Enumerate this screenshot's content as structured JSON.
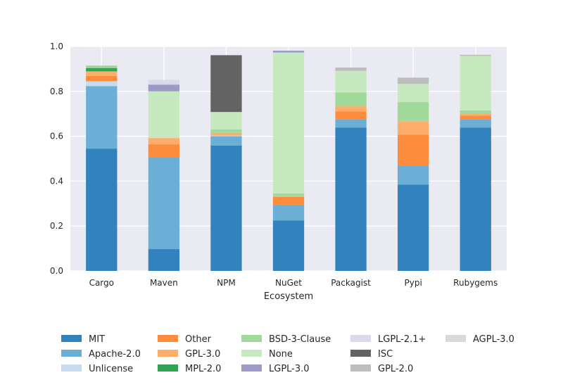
{
  "chart_data": {
    "type": "bar",
    "stacked": true,
    "title": "",
    "xlabel": "Ecosystem",
    "ylabel": "",
    "ylim": [
      0,
      1.0
    ],
    "yticks": [
      "0.0",
      "0.2",
      "0.4",
      "0.6",
      "0.8",
      "1.0"
    ],
    "grid": true,
    "legend_position": "bottom",
    "categories": [
      "Cargo",
      "Maven",
      "NPM",
      "NuGet",
      "Packagist",
      "Pypi",
      "Rubygems"
    ],
    "series": [
      {
        "name": "MIT",
        "color": "#3182bd",
        "values": [
          0.545,
          0.097,
          0.558,
          0.225,
          0.638,
          0.384,
          0.638
        ]
      },
      {
        "name": "Apache-2.0",
        "color": "#6baed6",
        "values": [
          0.278,
          0.409,
          0.042,
          0.07,
          0.037,
          0.085,
          0.037
        ]
      },
      {
        "name": "Unlicense",
        "color": "#c6dbef",
        "values": [
          0.022,
          0.0,
          0.003,
          0.0,
          0.0,
          0.0,
          0.0
        ]
      },
      {
        "name": "Other",
        "color": "#fd8d3c",
        "values": [
          0.024,
          0.058,
          0.0,
          0.035,
          0.035,
          0.138,
          0.017
        ]
      },
      {
        "name": "GPL-3.0",
        "color": "#fdae6b",
        "values": [
          0.02,
          0.028,
          0.012,
          0.003,
          0.025,
          0.06,
          0.01
        ]
      },
      {
        "name": "MPL-2.0",
        "color": "#31a354",
        "values": [
          0.015,
          0.0,
          0.0,
          0.0,
          0.0,
          0.0,
          0.0
        ]
      },
      {
        "name": "BSD-3-Clause",
        "color": "#a1d99b",
        "values": [
          0.011,
          0.0,
          0.015,
          0.012,
          0.06,
          0.085,
          0.013
        ]
      },
      {
        "name": "None",
        "color": "#c7e9c0",
        "values": [
          0.0,
          0.208,
          0.078,
          0.628,
          0.096,
          0.081,
          0.243
        ]
      },
      {
        "name": "LGPL-3.0",
        "color": "#9e9ac8",
        "values": [
          0.0,
          0.03,
          0.0,
          0.008,
          0.0,
          0.0,
          0.0
        ]
      },
      {
        "name": "LGPL-2.1+",
        "color": "#dadaeb",
        "values": [
          0.0,
          0.021,
          0.0,
          0.0,
          0.0,
          0.0,
          0.0
        ]
      },
      {
        "name": "ISC",
        "color": "#636363",
        "values": [
          0.0,
          0.0,
          0.253,
          0.0,
          0.0,
          0.0,
          0.0
        ]
      },
      {
        "name": "GPL-2.0",
        "color": "#bdbdbd",
        "values": [
          0.0,
          0.0,
          0.0,
          0.0,
          0.015,
          0.028,
          0.005
        ]
      },
      {
        "name": "AGPL-3.0",
        "color": "#d9d9d9",
        "values": [
          0.0,
          0.0,
          0.0,
          0.0,
          0.0,
          0.0,
          0.0
        ]
      }
    ]
  }
}
